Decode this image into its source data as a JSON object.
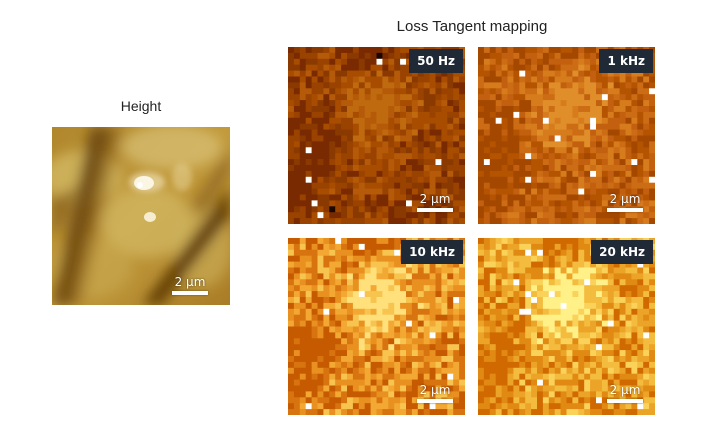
{
  "height": {
    "title": "Height",
    "scale_label": "2 µm"
  },
  "loss": {
    "title": "Loss Tangent mapping",
    "panels": [
      {
        "freq": "50 Hz",
        "scale_label": "2 µm",
        "palette": [
          "#7a2a00",
          "#8a3a00",
          "#9a4200",
          "#a84c00",
          "#b45a08",
          "#c06a10"
        ]
      },
      {
        "freq": "1 kHz",
        "scale_label": "2 µm",
        "palette": [
          "#a44800",
          "#b45400",
          "#c26010",
          "#cc6c14",
          "#d67c1c",
          "#e08e2a"
        ]
      },
      {
        "freq": "10 kHz",
        "scale_label": "2 µm",
        "palette": [
          "#c65a00",
          "#d87410",
          "#e89020",
          "#f2a832",
          "#f8c450",
          "#ffe07a"
        ]
      },
      {
        "freq": "20 kHz",
        "scale_label": "2 µm",
        "palette": [
          "#d06a00",
          "#e08a14",
          "#eca428",
          "#f4bc3e",
          "#fad25a",
          "#fff088"
        ]
      }
    ]
  }
}
